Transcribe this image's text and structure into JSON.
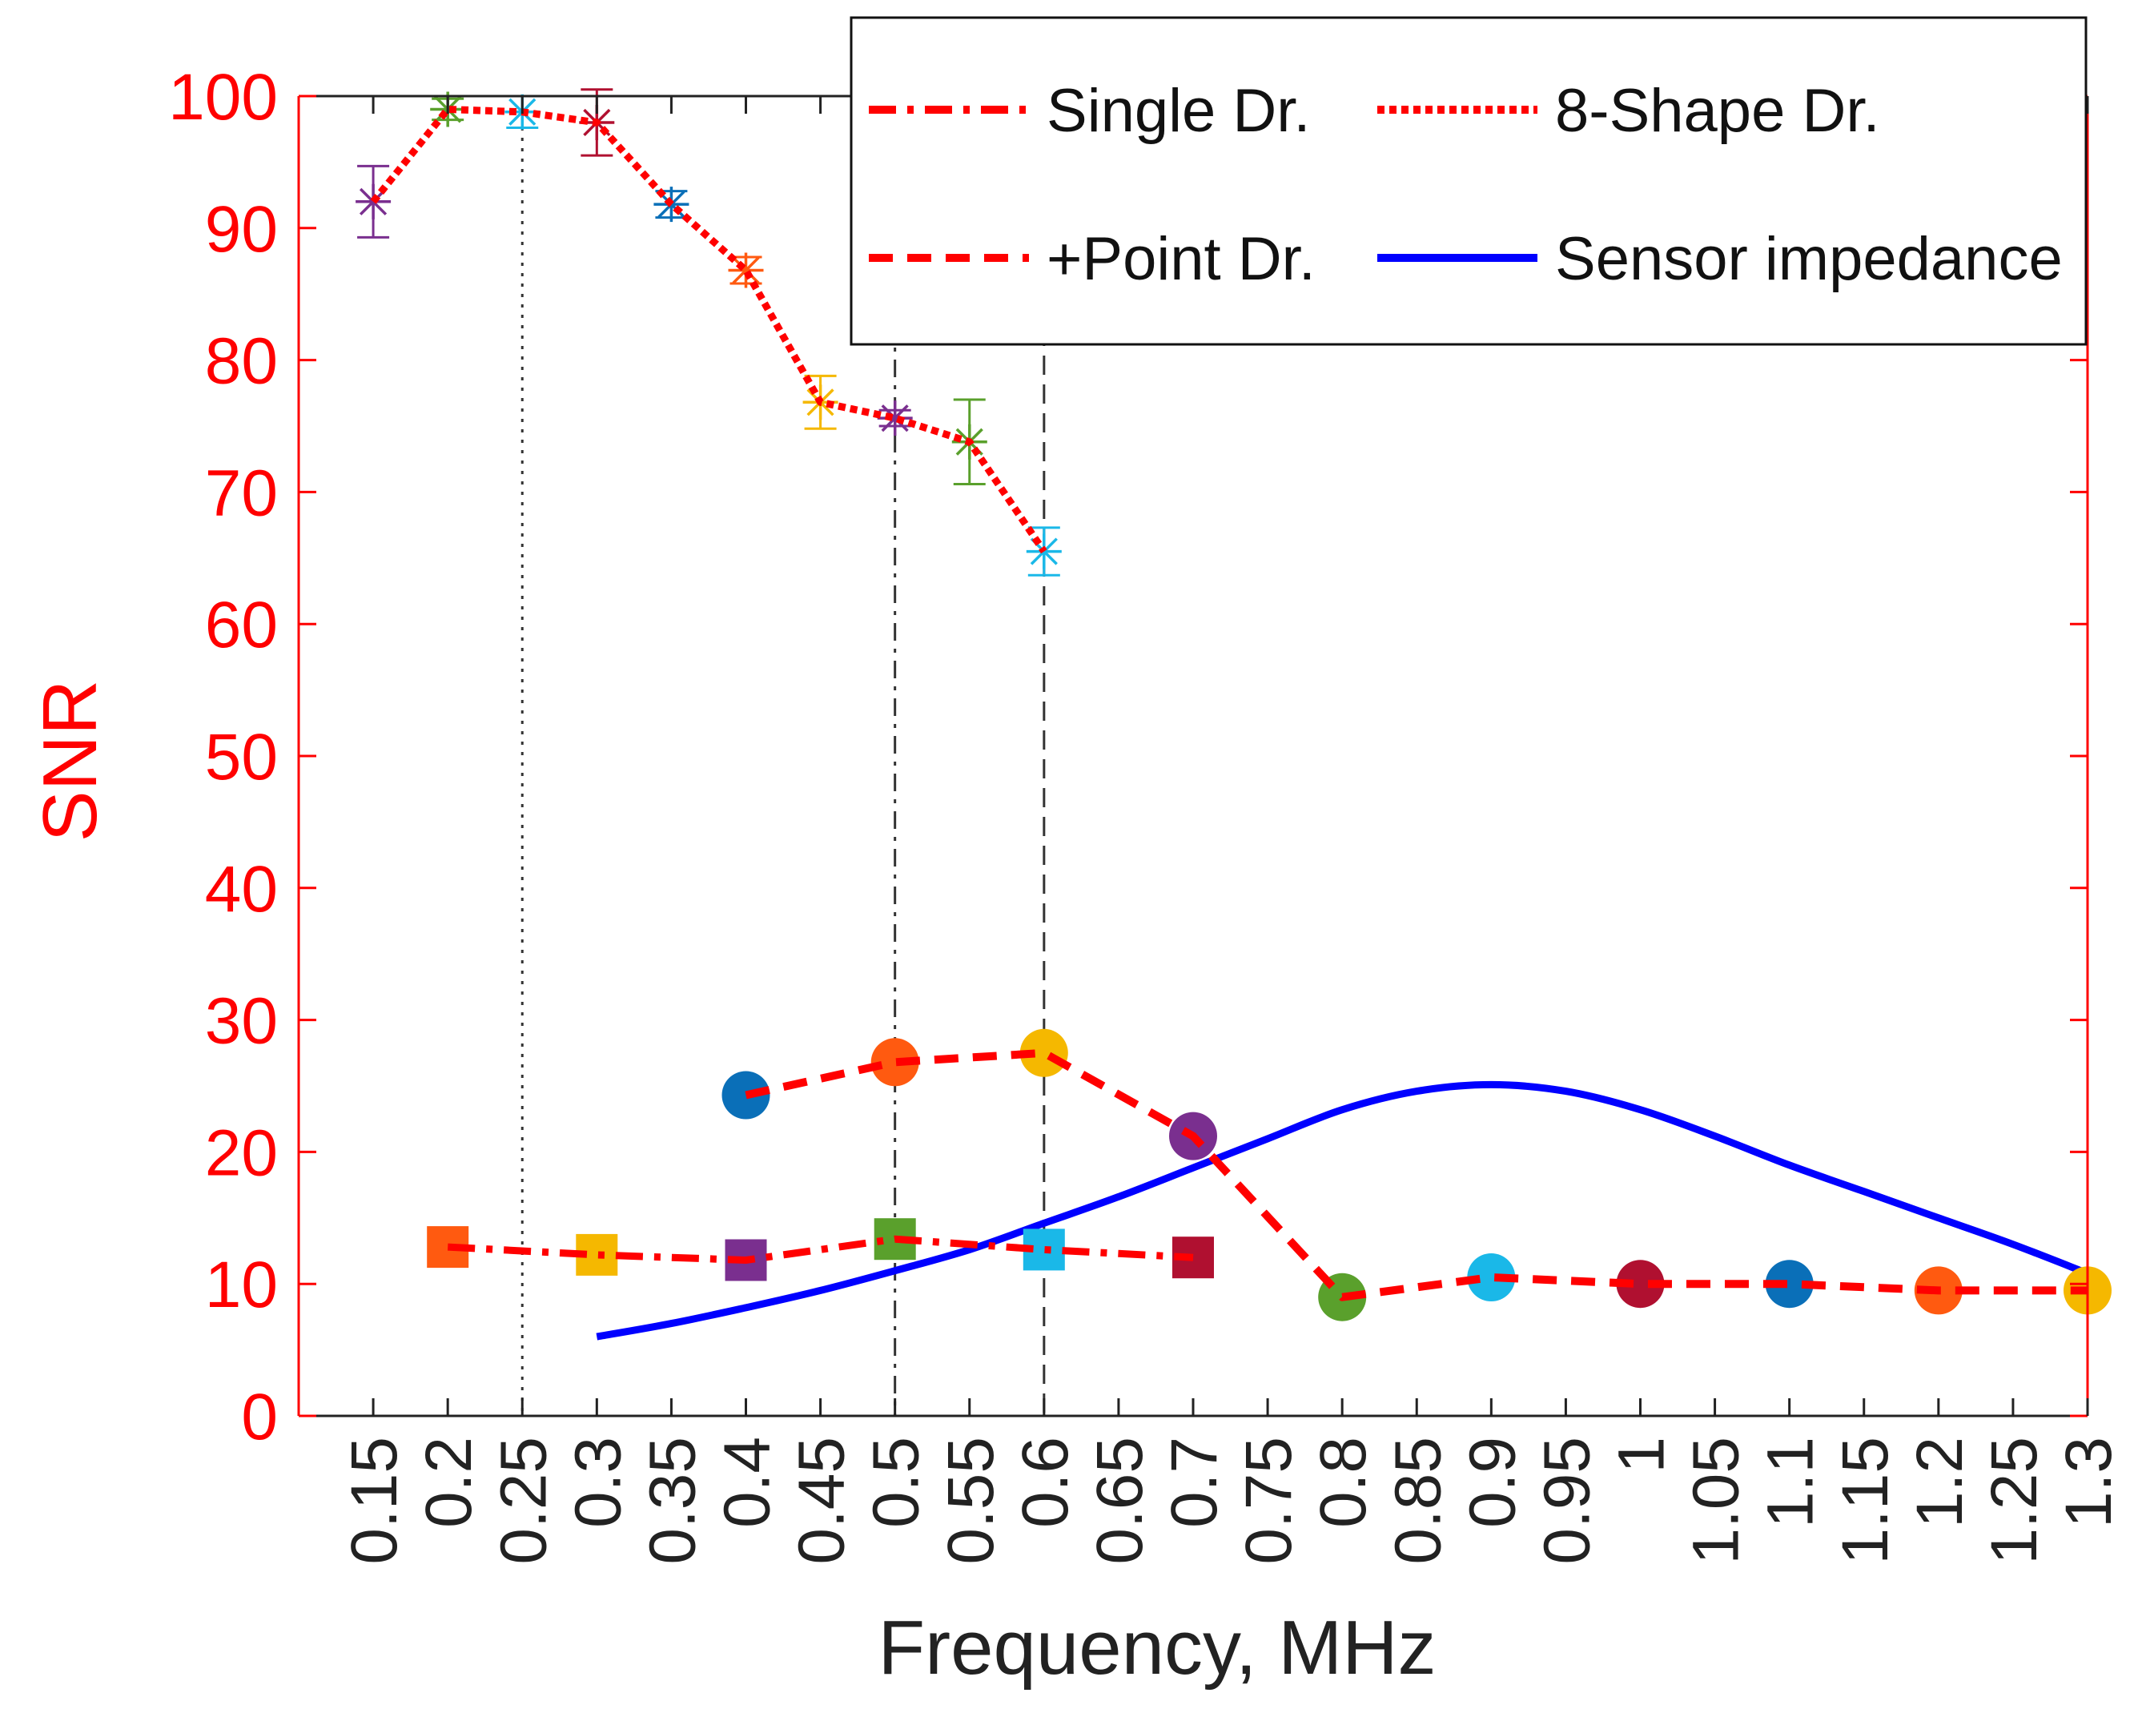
{
  "chart_data": {
    "type": "line",
    "title": "",
    "xlabel": "Frequency, MHz",
    "ylabel": "SNR",
    "xlim": [
      0.1,
      1.3
    ],
    "ylim": [
      0,
      100
    ],
    "x_ticks": [
      "0.15",
      "0.2",
      "0.25",
      "0.3",
      "0.35",
      "0.4",
      "0.45",
      "0.5",
      "0.55",
      "0.6",
      "0.65",
      "0.7",
      "0.75",
      "0.8",
      "0.85",
      "0.9",
      "0.95",
      "1",
      "1.05",
      "1.1",
      "1.15",
      "1.2",
      "1.25",
      "1.3"
    ],
    "y_ticks": [
      "0",
      "10",
      "20",
      "30",
      "40",
      "50",
      "60",
      "70",
      "80",
      "90",
      "100"
    ],
    "grid": false,
    "legend_position": "top-right",
    "reference_lines": [
      {
        "x": 0.25,
        "style": "dotted"
      },
      {
        "x": 0.5,
        "style": "dash-dot"
      },
      {
        "x": 0.6,
        "style": "dashed"
      }
    ],
    "series": [
      {
        "name": "Single Dr.",
        "line_style": "dash-dot",
        "color": "#ff0000",
        "marker": "square",
        "x": [
          0.2,
          0.3,
          0.4,
          0.5,
          0.6,
          0.7
        ],
        "y": [
          12.8,
          12.2,
          11.8,
          13.4,
          12.6,
          12.0
        ],
        "marker_colors": [
          "#ff5a10",
          "#f5b800",
          "#7a2f8f",
          "#5aa02c",
          "#1ab8e8",
          "#b01030"
        ]
      },
      {
        "name": "8-Shape Dr.",
        "line_style": "dotted",
        "color": "#ff0000",
        "marker": "asterisk",
        "x": [
          0.15,
          0.2,
          0.25,
          0.3,
          0.35,
          0.4,
          0.45,
          0.5,
          0.55,
          0.6
        ],
        "y": [
          92.0,
          99.0,
          98.8,
          98.0,
          91.8,
          86.8,
          76.8,
          75.6,
          73.8,
          65.5
        ],
        "error": [
          2.7,
          0.8,
          1.2,
          2.5,
          1.0,
          1.0,
          2.0,
          0.6,
          3.2,
          1.8
        ],
        "marker_colors": [
          "#7a2f8f",
          "#5aa02c",
          "#1ab8e8",
          "#b01030",
          "#0a6fb8",
          "#ff5a10",
          "#f5b800",
          "#7a2f8f",
          "#5aa02c",
          "#1ab8e8"
        ]
      },
      {
        "name": "+Point Dr.",
        "line_style": "dashed",
        "color": "#ff0000",
        "marker": "circle",
        "x": [
          0.4,
          0.5,
          0.6,
          0.7,
          0.8,
          0.9,
          1.0,
          1.1,
          1.2,
          1.3
        ],
        "y": [
          24.3,
          26.8,
          27.5,
          21.2,
          9.0,
          10.5,
          10.0,
          10.0,
          9.5,
          9.5
        ],
        "marker_colors": [
          "#0a6fb8",
          "#ff5a10",
          "#f5b800",
          "#7a2f8f",
          "#5aa02c",
          "#1ab8e8",
          "#b01030",
          "#0a6fb8",
          "#ff5a10",
          "#f5b800"
        ]
      },
      {
        "name": "Sensor impedance",
        "line_style": "solid",
        "color": "#0000ff",
        "marker": "none",
        "x": [
          0.3,
          0.35,
          0.4,
          0.45,
          0.5,
          0.55,
          0.6,
          0.65,
          0.7,
          0.75,
          0.8,
          0.85,
          0.9,
          0.95,
          1.0,
          1.05,
          1.1,
          1.15,
          1.2,
          1.25,
          1.3
        ],
        "y": [
          6.0,
          7.0,
          8.2,
          9.5,
          11.0,
          12.6,
          14.6,
          16.6,
          18.8,
          21.0,
          23.2,
          24.6,
          25.1,
          24.6,
          23.2,
          21.2,
          19.0,
          17.0,
          15.0,
          13.0,
          10.8
        ]
      }
    ]
  }
}
